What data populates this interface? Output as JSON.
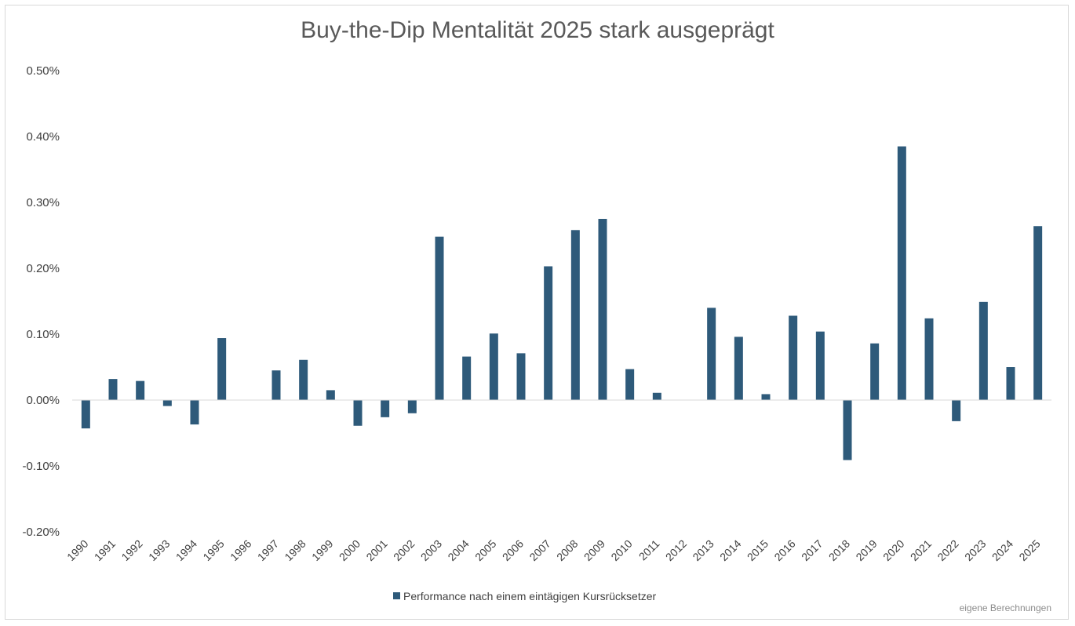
{
  "chart_data": {
    "type": "bar",
    "title": "Buy-the-Dip Mentalität 2025 stark ausgeprägt",
    "xlabel": "",
    "ylabel": "",
    "ylim": [
      -0.2,
      0.5
    ],
    "y_ticks": [
      0.5,
      0.4,
      0.3,
      0.2,
      0.1,
      0.0,
      -0.1,
      -0.2
    ],
    "y_tick_labels": [
      "0.50%",
      "0.40%",
      "0.30%",
      "0.20%",
      "0.10%",
      "0.00%",
      "-0.10%",
      "-0.20%"
    ],
    "grid": false,
    "legend_position": "bottom",
    "categories": [
      "1990",
      "1991",
      "1992",
      "1993",
      "1994",
      "1995",
      "1996",
      "1997",
      "1998",
      "1999",
      "2000",
      "2001",
      "2002",
      "2003",
      "2004",
      "2005",
      "2006",
      "2007",
      "2008",
      "2009",
      "2010",
      "2011",
      "2012",
      "2013",
      "2014",
      "2015",
      "2016",
      "2017",
      "2018",
      "2019",
      "2020",
      "2021",
      "2022",
      "2023",
      "2024",
      "2025"
    ],
    "series": [
      {
        "name": "Performance nach einem eintägigen Kursrücksetzer",
        "color": "#2e5a7a",
        "values": [
          -0.043,
          0.032,
          0.029,
          -0.009,
          -0.037,
          0.094,
          0.0,
          0.045,
          0.061,
          0.015,
          -0.039,
          -0.026,
          -0.02,
          0.248,
          0.066,
          0.101,
          0.071,
          0.203,
          0.258,
          0.275,
          0.047,
          0.011,
          0.0,
          0.14,
          0.096,
          0.009,
          0.128,
          0.104,
          -0.091,
          0.086,
          0.385,
          0.124,
          -0.032,
          0.149,
          0.05,
          0.264
        ]
      }
    ]
  },
  "footer": {
    "note": "eigene Berechnungen"
  }
}
